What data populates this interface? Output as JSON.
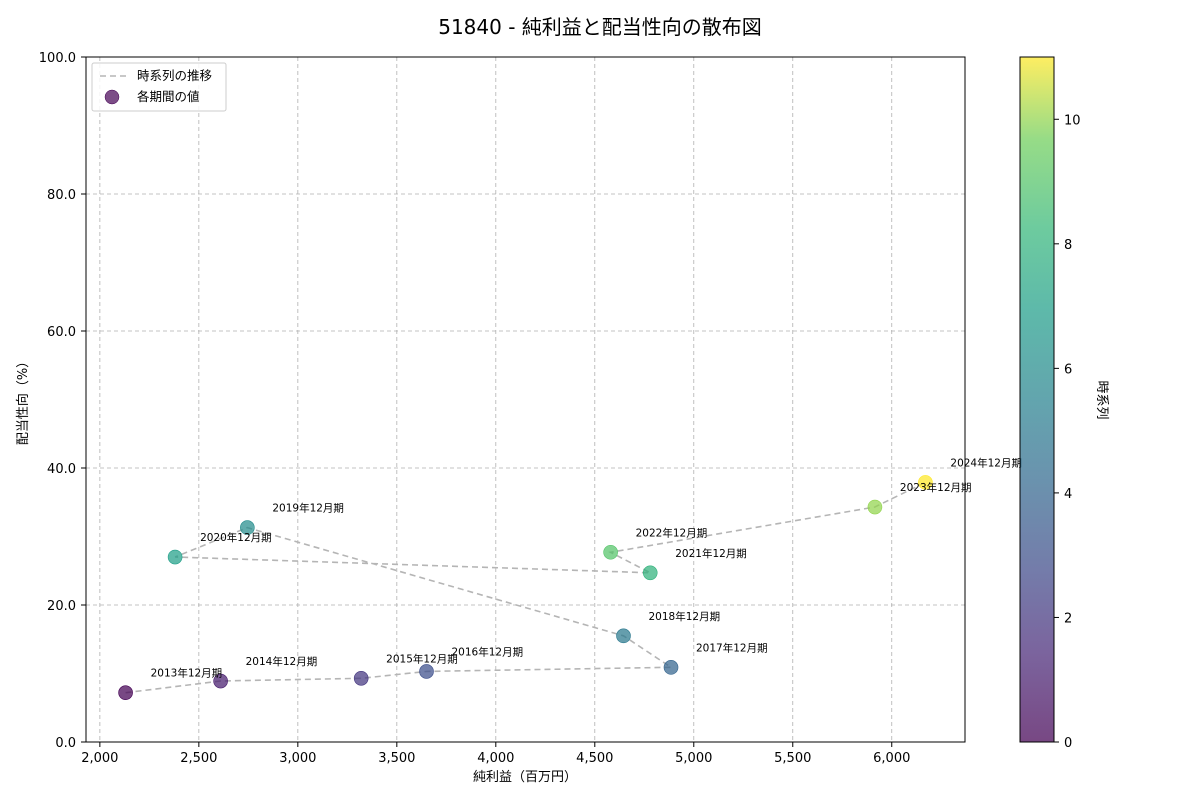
{
  "chart_data": {
    "type": "scatter",
    "title": "51840 - 純利益と配当性向の散布図",
    "xlabel": "純利益（百万円）",
    "ylabel": "配当性向（%）",
    "xlim": [
      1930,
      6370
    ],
    "ylim": [
      0,
      100
    ],
    "xticks": [
      2000,
      2500,
      3000,
      3500,
      4000,
      4500,
      5000,
      5500,
      6000
    ],
    "xtick_labels": [
      "2,000",
      "2,500",
      "3,000",
      "3,500",
      "4,000",
      "4,500",
      "5,000",
      "5,500",
      "6,000"
    ],
    "yticks": [
      0,
      20,
      40,
      60,
      80,
      100
    ],
    "ytick_labels": [
      "0.0",
      "20.0",
      "40.0",
      "60.0",
      "80.0",
      "100.0"
    ],
    "grid": true,
    "legend": {
      "position": "top-left",
      "line_label": "時系列の推移",
      "point_label": "各期間の値"
    },
    "colorbar": {
      "label": "時系列",
      "min": 0,
      "max": 11,
      "ticks": [
        0,
        2,
        4,
        6,
        8,
        10
      ],
      "tick_labels": [
        "0",
        "2",
        "4",
        "6",
        "8",
        "10"
      ],
      "colormap": "viridis"
    },
    "points": [
      {
        "period": "2013年12月期",
        "x": 2130,
        "y": 7.2,
        "t": 0
      },
      {
        "period": "2014年12月期",
        "x": 2610,
        "y": 8.9,
        "t": 1
      },
      {
        "period": "2015年12月期",
        "x": 3320,
        "y": 9.3,
        "t": 2
      },
      {
        "period": "2016年12月期",
        "x": 3650,
        "y": 10.3,
        "t": 3
      },
      {
        "period": "2017年12月期",
        "x": 4885,
        "y": 10.9,
        "t": 4
      },
      {
        "period": "2018年12月期",
        "x": 4645,
        "y": 15.5,
        "t": 5
      },
      {
        "period": "2019年12月期",
        "x": 2745,
        "y": 31.3,
        "t": 6
      },
      {
        "period": "2020年12月期",
        "x": 2380,
        "y": 27.0,
        "t": 7
      },
      {
        "period": "2021年12月期",
        "x": 4780,
        "y": 24.7,
        "t": 8
      },
      {
        "period": "2022年12月期",
        "x": 4580,
        "y": 27.7,
        "t": 9
      },
      {
        "period": "2023年12月期",
        "x": 5915,
        "y": 34.3,
        "t": 10
      },
      {
        "period": "2024年12月期",
        "x": 6170,
        "y": 37.9,
        "t": 11
      }
    ]
  }
}
